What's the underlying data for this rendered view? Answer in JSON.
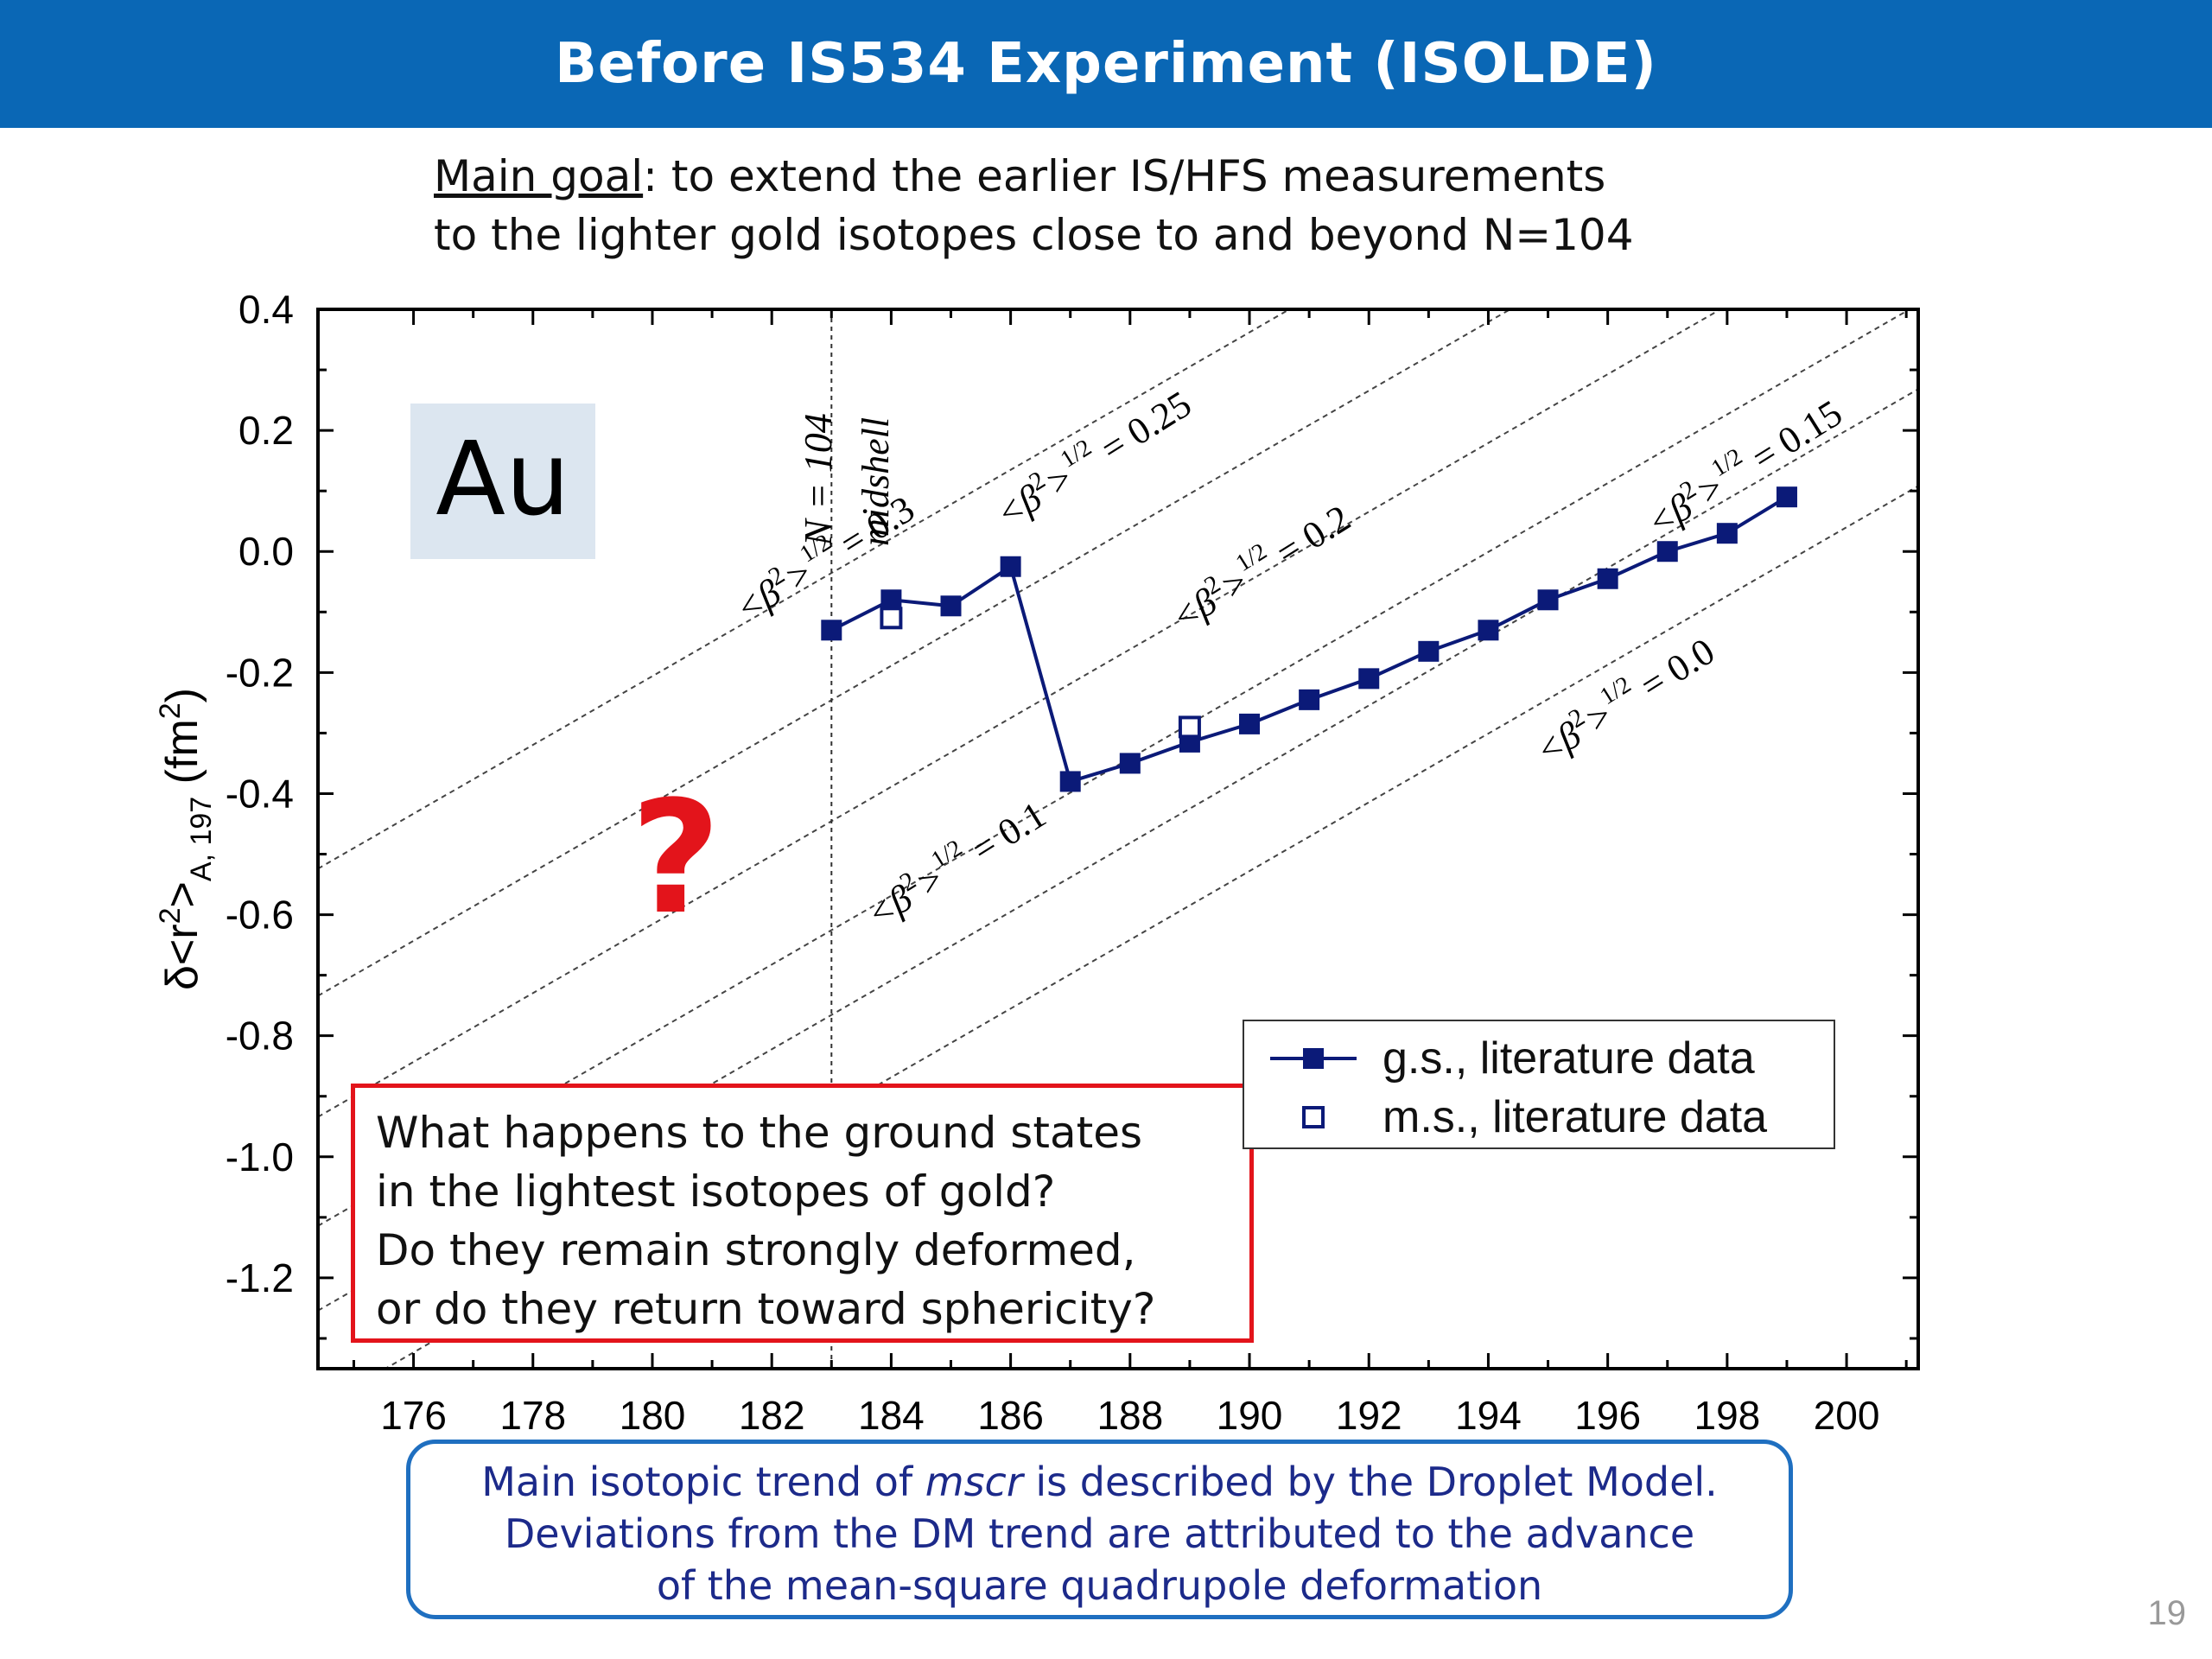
{
  "slide": {
    "title": "Before IS534 Experiment (ISOLDE)",
    "goal_label": "Main goal",
    "goal_line1": ":  to extend the earlier IS/HFS measurements",
    "goal_line2": "to the lighter gold isotopes close to and beyond N=104",
    "page_number": "19"
  },
  "question": {
    "lines": [
      "What happens to the ground states",
      "in the lightest isotopes of gold?",
      "Do they remain strongly deformed,",
      "or do they return toward sphericity?"
    ]
  },
  "note": {
    "line1_a": "Main isotopic trend of ",
    "line1_em": "mscr",
    "line1_b": " is described by the Droplet Model.",
    "line2": "Deviations from the DM trend are attributed to the advance",
    "line3": "of the mean-square quadrupole deformation"
  },
  "chart_data": {
    "type": "scatter",
    "element_label": "Au",
    "question_mark": "?",
    "xlim": [
      174.4,
      201.2
    ],
    "ylim": [
      -1.35,
      0.4
    ],
    "x_ticks": [
      176,
      178,
      180,
      182,
      184,
      186,
      188,
      190,
      192,
      194,
      196,
      198,
      200
    ],
    "y_ticks": [
      0.4,
      0.2,
      0.0,
      -0.2,
      -0.4,
      -0.6,
      -0.8,
      -1.0,
      -1.2
    ],
    "y_tick_labels": [
      "0.4",
      "0.2",
      "0.0",
      "-0.2",
      "-0.4",
      "-0.6",
      "-0.8",
      "-1.0",
      "-1.2"
    ],
    "ylabel": "δ<r²>A, 197 (fm²)",
    "ylabel_parts": {
      "a": "δ<r",
      "sup1": "2",
      "b": ">",
      "sub": "A, 197",
      "c": " (fm",
      "sup2": "2",
      "d": ")"
    },
    "midshell": {
      "x": 183,
      "label_n": "N = 104",
      "label_midshell": "midshell"
    },
    "series": [
      {
        "name": "g.s., literature data",
        "marker": "filled-square",
        "line": true,
        "color": "#0b1a78",
        "points": [
          [
            183,
            -0.13
          ],
          [
            184,
            -0.08
          ],
          [
            185,
            -0.09
          ],
          [
            186,
            -0.025
          ],
          [
            187,
            -0.38
          ],
          [
            188,
            -0.35
          ],
          [
            189,
            -0.315
          ],
          [
            190,
            -0.285
          ],
          [
            191,
            -0.245
          ],
          [
            192,
            -0.21
          ],
          [
            193,
            -0.165
          ],
          [
            194,
            -0.13
          ],
          [
            195,
            -0.08
          ],
          [
            196,
            -0.045
          ],
          [
            197,
            0.0
          ],
          [
            198,
            0.03
          ],
          [
            199,
            0.09
          ]
        ]
      },
      {
        "name": "m.s., literature data",
        "marker": "open-square",
        "line": false,
        "color": "#0b1a78",
        "points": [
          [
            184,
            -0.11
          ],
          [
            189,
            -0.29
          ]
        ]
      }
    ],
    "isodeformation_lines": [
      {
        "beta": "0.3",
        "slope": 0.0568,
        "y_at_200": 0.93
      },
      {
        "beta": "0.25",
        "slope": 0.0568,
        "y_at_200": 0.72
      },
      {
        "beta": "0.2",
        "slope": 0.0568,
        "y_at_200": 0.52
      },
      {
        "beta": "0.15",
        "slope": 0.0568,
        "y_at_200": 0.34
      },
      {
        "beta": "0.1",
        "slope": 0.0568,
        "y_at_200": 0.2
      },
      {
        "beta": "0.0",
        "slope": 0.0568,
        "y_at_200": 0.04
      }
    ],
    "deformation_labels": [
      {
        "a": "<β",
        "sup": "2",
        "b": ">",
        "exp": "1/2",
        "eq": " = 0.3"
      },
      {
        "a": "<β",
        "sup": "2",
        "b": ">",
        "exp": "1/2",
        "eq": " = 0.25"
      },
      {
        "a": "<β",
        "sup": "2",
        "b": ">",
        "exp": "1/2",
        "eq": " = 0.2"
      },
      {
        "a": "<β",
        "sup": "2",
        "b": ">",
        "exp": "1/2",
        "eq": " = 0.15"
      },
      {
        "a": "<β",
        "sup": "2",
        "b": ">",
        "exp": "1/2",
        "eq": " = 0.1"
      },
      {
        "a": "<β",
        "sup": "2",
        "b": ">",
        "exp": "1/2",
        "eq": " = 0.0"
      }
    ],
    "legend": {
      "position": "lower-right",
      "entries": [
        "g.s., literature data",
        "m.s., literature data"
      ]
    },
    "colors": {
      "data": "#0b1a78",
      "question_mark": "#e3141b",
      "au_box": "#dce6f0"
    }
  }
}
